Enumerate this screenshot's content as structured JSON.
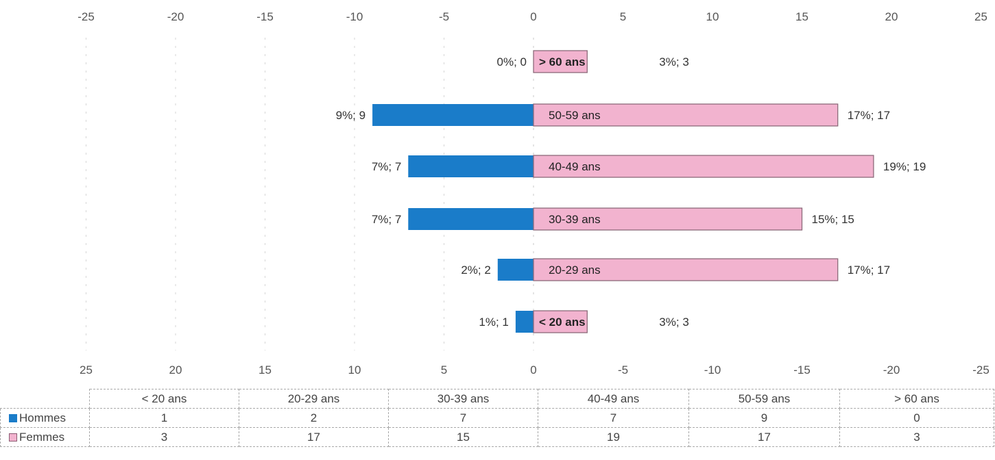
{
  "chart_data": {
    "type": "bar",
    "orientation": "horizontal",
    "categories": [
      "< 20 ans",
      "20-29 ans",
      "30-39 ans",
      "40-49 ans",
      "50-59 ans",
      "> 60 ans"
    ],
    "series": [
      {
        "name": "Hommes",
        "color": "#1a7cc9",
        "values": [
          1,
          2,
          7,
          7,
          9,
          0
        ],
        "labels": [
          "1%; 1",
          "2%; 2",
          "7%; 7",
          "7%; 7",
          "9%; 9",
          "0%; 0"
        ]
      },
      {
        "name": "Femmes",
        "color": "#f2b3cf",
        "values": [
          3,
          17,
          15,
          19,
          17,
          3
        ],
        "labels": [
          "3%; 3",
          "17%; 17",
          "15%; 15",
          "19%; 19",
          "17%; 17",
          "3%; 3"
        ]
      }
    ],
    "xlim": [
      -25,
      25
    ],
    "top_axis_ticks": [
      "-25",
      "-20",
      "-15",
      "-10",
      "-5",
      "0",
      "5",
      "10",
      "15",
      "20",
      "25"
    ],
    "bottom_axis_ticks": [
      "25",
      "20",
      "15",
      "10",
      "5",
      "0",
      "-5",
      "-10",
      "-15",
      "-20",
      "-25"
    ],
    "grid": false,
    "title": "",
    "xlabel": "",
    "ylabel": "",
    "legend": "bottom data table"
  }
}
